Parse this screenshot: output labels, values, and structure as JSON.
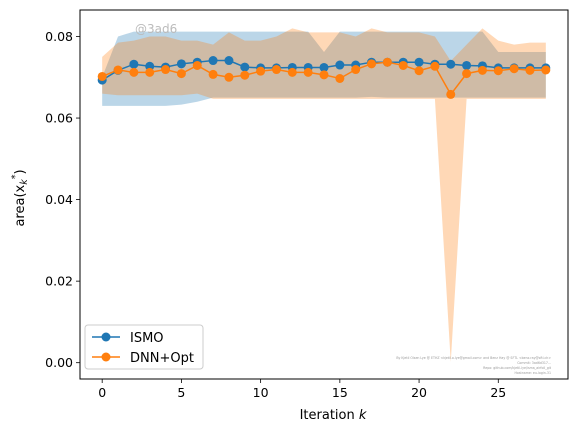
{
  "chart_data": {
    "type": "line",
    "title": "",
    "xlabel": "Iteration",
    "xlabel_var": "k",
    "ylabel": "area(x",
    "ylabel_sub": "k",
    "ylabel_sup": "*",
    "ylabel_close": ")",
    "xlim": [
      -1.4,
      29.4
    ],
    "ylim": [
      -0.004,
      0.0865
    ],
    "xticks": [
      0,
      5,
      10,
      15,
      20,
      25
    ],
    "yticks": [
      0.0,
      0.02,
      0.04,
      0.06,
      0.08
    ],
    "ytick_labels": [
      "0.00",
      "0.02",
      "0.04",
      "0.06",
      "0.08"
    ],
    "grid": false,
    "legend_position": "lower-left",
    "x": [
      0,
      1,
      2,
      3,
      4,
      5,
      6,
      7,
      8,
      9,
      10,
      11,
      12,
      13,
      14,
      15,
      16,
      17,
      18,
      19,
      20,
      21,
      22,
      23,
      24,
      25,
      26,
      27,
      28
    ],
    "series": [
      {
        "name": "ISMO",
        "color": "#1f77b4",
        "band_color": "#1f77b4",
        "values": [
          0.0693,
          0.0717,
          0.0732,
          0.0727,
          0.0725,
          0.0733,
          0.0737,
          0.0741,
          0.0741,
          0.0725,
          0.0723,
          0.0723,
          0.0724,
          0.0724,
          0.0724,
          0.073,
          0.073,
          0.0737,
          0.0737,
          0.0737,
          0.0737,
          0.0732,
          0.0732,
          0.0729,
          0.0728,
          0.0723,
          0.0723,
          0.0723,
          0.0723
        ],
        "lower": [
          0.063,
          0.063,
          0.063,
          0.063,
          0.063,
          0.0633,
          0.064,
          0.065,
          0.065,
          0.065,
          0.065,
          0.065,
          0.065,
          0.065,
          0.065,
          0.065,
          0.065,
          0.0652,
          0.065,
          0.065,
          0.065,
          0.065,
          0.065,
          0.065,
          0.065,
          0.065,
          0.065,
          0.065,
          0.065
        ],
        "upper": [
          0.07,
          0.08,
          0.0812,
          0.0812,
          0.0812,
          0.0812,
          0.0812,
          0.0812,
          0.0812,
          0.0812,
          0.0812,
          0.0812,
          0.0812,
          0.0812,
          0.0762,
          0.0812,
          0.0812,
          0.0812,
          0.0812,
          0.0812,
          0.0812,
          0.0812,
          0.0812,
          0.0812,
          0.0812,
          0.0762,
          0.0762,
          0.0762,
          0.0762
        ]
      },
      {
        "name": "DNN+Opt",
        "color": "#ff7f0e",
        "band_color": "#ff7f0e",
        "values": [
          0.0702,
          0.0718,
          0.0712,
          0.0712,
          0.0719,
          0.0709,
          0.0729,
          0.0707,
          0.07,
          0.0705,
          0.0715,
          0.0719,
          0.0712,
          0.0712,
          0.0706,
          0.0697,
          0.0719,
          0.0733,
          0.0737,
          0.0729,
          0.0716,
          0.0727,
          0.0658,
          0.0709,
          0.0717,
          0.0716,
          0.0721,
          0.0717,
          0.0718
        ],
        "lower": [
          0.066,
          0.0656,
          0.0656,
          0.0656,
          0.0656,
          0.0656,
          0.066,
          0.0647,
          0.0647,
          0.0647,
          0.0647,
          0.0647,
          0.0647,
          0.0647,
          0.0647,
          0.0647,
          0.0647,
          0.0647,
          0.0647,
          0.0647,
          0.0647,
          0.0647,
          0.0002,
          0.0647,
          0.0647,
          0.0647,
          0.0647,
          0.0647,
          0.0647
        ],
        "upper": [
          0.075,
          0.0785,
          0.079,
          0.08,
          0.08,
          0.079,
          0.079,
          0.078,
          0.081,
          0.079,
          0.079,
          0.08,
          0.082,
          0.081,
          0.081,
          0.081,
          0.08,
          0.082,
          0.081,
          0.081,
          0.081,
          0.08,
          0.074,
          0.078,
          0.082,
          0.079,
          0.078,
          0.0785,
          0.0785
        ]
      }
    ]
  },
  "watermark": "@3ad6",
  "fine_print": [
    "By Kjetil Olsen Lye @ ETHZ <kjetil.o.lye@gmail.com> and Benz Hay @ SFTL <benz.ray@sftl.ch>",
    "Commit: 3ad6d317...",
    "Repo: github.com/kjetil-lye/isma_airfoil_git",
    "Hostname: eu-login-31"
  ]
}
